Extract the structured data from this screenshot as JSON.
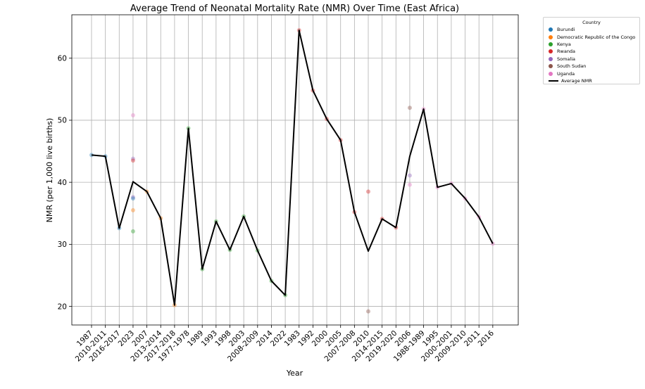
{
  "chart_data": {
    "type": "line",
    "title": "Average Trend of Neonatal Mortality Rate (NMR) Over Time (East Africa)",
    "xlabel": "Year",
    "ylabel": "NMR (per 1,000 live births)",
    "ylim": [
      17,
      67
    ],
    "yticks": [
      20,
      30,
      40,
      50,
      60
    ],
    "grid": true,
    "categories": [
      "1987",
      "2010-2011",
      "2016-2017",
      "2023",
      "2007",
      "2013-2014",
      "2017-2018",
      "1977-1978",
      "1989",
      "1993",
      "1998",
      "2003",
      "2008-2009",
      "2014",
      "2022",
      "1983",
      "1992",
      "2000",
      "2005",
      "2007-2008",
      "2010",
      "2014-2015",
      "2019-2020",
      "2006",
      "1988-1989",
      "1995",
      "2000-2001",
      "2009-2010",
      "2011",
      "2016"
    ],
    "average_series": {
      "name": "Average NMR",
      "color": "#000000",
      "values": [
        44.4,
        44.2,
        32.6,
        40.1,
        38.5,
        34.2,
        20.2,
        48.7,
        26.0,
        33.7,
        29.1,
        34.5,
        29.0,
        24.1,
        21.8,
        64.5,
        54.8,
        50.2,
        46.8,
        35.2,
        28.9,
        34.1,
        32.7,
        44.2,
        51.8,
        39.2,
        39.8,
        37.4,
        34.4,
        30.1
      ]
    },
    "legend": {
      "title": "Country",
      "position": "outside-right",
      "entries": [
        {
          "name": "Burundi",
          "color": "#1f77b4"
        },
        {
          "name": "Democratic Republic of the Congo",
          "color": "#ff7f0e"
        },
        {
          "name": "Kenya",
          "color": "#2ca02c"
        },
        {
          "name": "Rwanda",
          "color": "#d62728"
        },
        {
          "name": "Somalia",
          "color": "#9467bd"
        },
        {
          "name": "South Sudan",
          "color": "#8c564b"
        },
        {
          "name": "Uganda",
          "color": "#e377c2"
        }
      ],
      "line_entry": "Average NMR"
    },
    "points": [
      {
        "x": "1987",
        "y": 44.4,
        "country": "Burundi"
      },
      {
        "x": "2010-2011",
        "y": 44.2,
        "country": "Burundi"
      },
      {
        "x": "2016-2017",
        "y": 32.6,
        "country": "Burundi"
      },
      {
        "x": "2023",
        "y": 50.8,
        "country": "Uganda"
      },
      {
        "x": "2023",
        "y": 43.8,
        "country": "Somalia"
      },
      {
        "x": "2023",
        "y": 43.5,
        "country": "Rwanda"
      },
      {
        "x": "2023",
        "y": 37.6,
        "country": "Somalia"
      },
      {
        "x": "2023",
        "y": 37.4,
        "country": "Burundi"
      },
      {
        "x": "2023",
        "y": 35.5,
        "country": "Democratic Republic of the Congo"
      },
      {
        "x": "2023",
        "y": 32.1,
        "country": "Kenya"
      },
      {
        "x": "2007",
        "y": 38.5,
        "country": "Democratic Republic of the Congo"
      },
      {
        "x": "2013-2014",
        "y": 34.2,
        "country": "Democratic Republic of the Congo"
      },
      {
        "x": "2017-2018",
        "y": 20.2,
        "country": "Democratic Republic of the Congo"
      },
      {
        "x": "1977-1978",
        "y": 48.7,
        "country": "Kenya"
      },
      {
        "x": "1989",
        "y": 26.0,
        "country": "Kenya"
      },
      {
        "x": "1993",
        "y": 33.7,
        "country": "Kenya"
      },
      {
        "x": "1998",
        "y": 29.1,
        "country": "Kenya"
      },
      {
        "x": "2003",
        "y": 34.5,
        "country": "Kenya"
      },
      {
        "x": "2008-2009",
        "y": 29.0,
        "country": "Kenya"
      },
      {
        "x": "2014",
        "y": 24.1,
        "country": "Kenya"
      },
      {
        "x": "2022",
        "y": 21.8,
        "country": "Kenya"
      },
      {
        "x": "1983",
        "y": 64.5,
        "country": "Rwanda"
      },
      {
        "x": "1992",
        "y": 54.8,
        "country": "Rwanda"
      },
      {
        "x": "2000",
        "y": 50.2,
        "country": "Rwanda"
      },
      {
        "x": "2005",
        "y": 46.8,
        "country": "Rwanda"
      },
      {
        "x": "2007-2008",
        "y": 35.2,
        "country": "Rwanda"
      },
      {
        "x": "2010",
        "y": 38.5,
        "country": "Rwanda"
      },
      {
        "x": "2010",
        "y": 19.2,
        "country": "South Sudan"
      },
      {
        "x": "2014-2015",
        "y": 34.1,
        "country": "Rwanda"
      },
      {
        "x": "2019-2020",
        "y": 32.7,
        "country": "Rwanda"
      },
      {
        "x": "2006",
        "y": 52.0,
        "country": "South Sudan"
      },
      {
        "x": "2006",
        "y": 41.1,
        "country": "Somalia"
      },
      {
        "x": "2006",
        "y": 39.6,
        "country": "Uganda"
      },
      {
        "x": "1988-1989",
        "y": 51.8,
        "country": "Uganda"
      },
      {
        "x": "1995",
        "y": 39.2,
        "country": "Uganda"
      },
      {
        "x": "2000-2001",
        "y": 39.8,
        "country": "Uganda"
      },
      {
        "x": "2009-2010",
        "y": 37.4,
        "country": "Uganda"
      },
      {
        "x": "2011",
        "y": 34.4,
        "country": "Uganda"
      },
      {
        "x": "2016",
        "y": 30.1,
        "country": "Uganda"
      }
    ]
  }
}
